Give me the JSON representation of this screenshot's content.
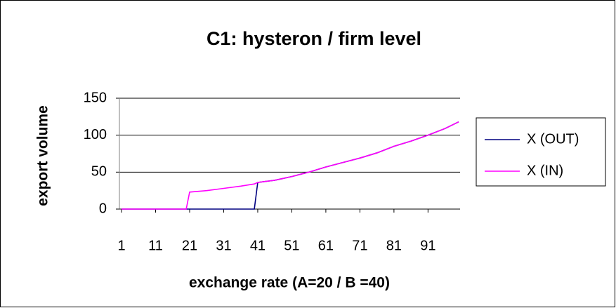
{
  "chart_data": {
    "type": "line",
    "title": "C1: hysteron / firm level",
    "x_label": "exchange rate (A=20 / B =40)",
    "y_label": "export volume",
    "x": [
      1,
      20,
      21,
      26,
      31,
      36,
      40,
      41,
      46,
      51,
      56,
      61,
      66,
      71,
      76,
      81,
      86,
      91,
      96,
      100
    ],
    "series": [
      {
        "name": "X (OUT)",
        "color": "#000080",
        "values": [
          0,
          0,
          0,
          0,
          0,
          0,
          0,
          36,
          39,
          44,
          50,
          57,
          63,
          69,
          76,
          85,
          92,
          100,
          109,
          118
        ]
      },
      {
        "name": "X (IN)",
        "color": "#ff00ff",
        "values": [
          0,
          0,
          23,
          25,
          28,
          31,
          34,
          36,
          39,
          44,
          50,
          57,
          63,
          69,
          76,
          85,
          92,
          100,
          109,
          118
        ]
      }
    ],
    "xlim": [
      1,
      100
    ],
    "xticks": [
      1,
      11,
      21,
      31,
      41,
      51,
      61,
      71,
      81,
      91
    ],
    "ylim": [
      0,
      150
    ],
    "yticks": [
      0,
      50,
      100,
      150
    ],
    "grid": true,
    "legend": "right"
  }
}
